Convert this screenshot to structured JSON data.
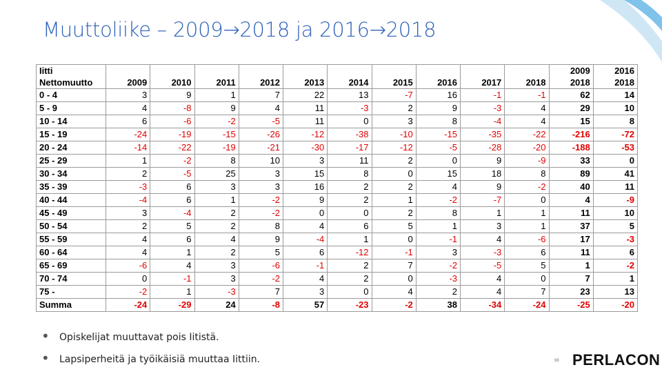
{
  "header": {
    "title": "Muuttoliike – 2009→2018 ja 2016→2018"
  },
  "table": {
    "area": "Iitti",
    "measure": "Nettomuutto",
    "years": [
      2009,
      2010,
      2011,
      2012,
      2013,
      2014,
      2015,
      2016,
      2017,
      2018
    ],
    "totals": [
      [
        2009,
        2018
      ],
      [
        2016,
        2018
      ]
    ],
    "rows": [
      [
        "0 -  4",
        3,
        9,
        1,
        7,
        22,
        13,
        -7,
        16,
        -1,
        -1,
        62,
        14
      ],
      [
        "5 -  9",
        4,
        -8,
        9,
        4,
        11,
        -3,
        2,
        9,
        -3,
        4,
        29,
        10
      ],
      [
        "10 - 14",
        6,
        -6,
        -2,
        -5,
        11,
        0,
        3,
        8,
        -4,
        4,
        15,
        8
      ],
      [
        "15 - 19",
        -24,
        -19,
        -15,
        -26,
        -12,
        -38,
        -10,
        -15,
        -35,
        -22,
        -216,
        -72
      ],
      [
        "20 - 24",
        -14,
        -22,
        -19,
        -21,
        -30,
        -17,
        -12,
        -5,
        -28,
        -20,
        -188,
        -53
      ],
      [
        "25 - 29",
        1,
        -2,
        8,
        10,
        3,
        11,
        2,
        0,
        9,
        -9,
        33,
        0
      ],
      [
        "30 - 34",
        2,
        -5,
        25,
        3,
        15,
        8,
        0,
        15,
        18,
        8,
        89,
        41
      ],
      [
        "35 - 39",
        -3,
        6,
        3,
        3,
        16,
        2,
        2,
        4,
        9,
        -2,
        40,
        11
      ],
      [
        "40 - 44",
        -4,
        6,
        1,
        -2,
        9,
        2,
        1,
        -2,
        -7,
        0,
        4,
        -9
      ],
      [
        "45 - 49",
        3,
        -4,
        2,
        -2,
        0,
        0,
        2,
        8,
        1,
        1,
        11,
        10
      ],
      [
        "50 - 54",
        2,
        5,
        2,
        8,
        4,
        6,
        5,
        1,
        3,
        1,
        37,
        5
      ],
      [
        "55 - 59",
        4,
        6,
        4,
        9,
        -4,
        1,
        0,
        -1,
        4,
        -6,
        17,
        -3
      ],
      [
        "60 - 64",
        4,
        1,
        2,
        5,
        6,
        -12,
        -1,
        3,
        -3,
        6,
        11,
        6
      ],
      [
        "65 - 69",
        -6,
        4,
        3,
        -6,
        -1,
        2,
        7,
        -2,
        -5,
        5,
        1,
        -2
      ],
      [
        "70 - 74",
        0,
        -1,
        3,
        -2,
        4,
        2,
        0,
        -3,
        4,
        0,
        7,
        1
      ],
      [
        "75 -",
        -2,
        1,
        -3,
        7,
        3,
        0,
        4,
        2,
        4,
        7,
        23,
        13
      ],
      [
        "Summa",
        -24,
        -29,
        24,
        -8,
        57,
        -23,
        -2,
        38,
        -34,
        -24,
        -25,
        -20
      ]
    ]
  },
  "bullets": [
    "Opiskelijat muuttavat pois Iitistä.",
    "Lapsiperheitä ja työikäisiä muuttaa Iittiin."
  ],
  "footer": {
    "page": "98",
    "logo": "PERLACON"
  }
}
